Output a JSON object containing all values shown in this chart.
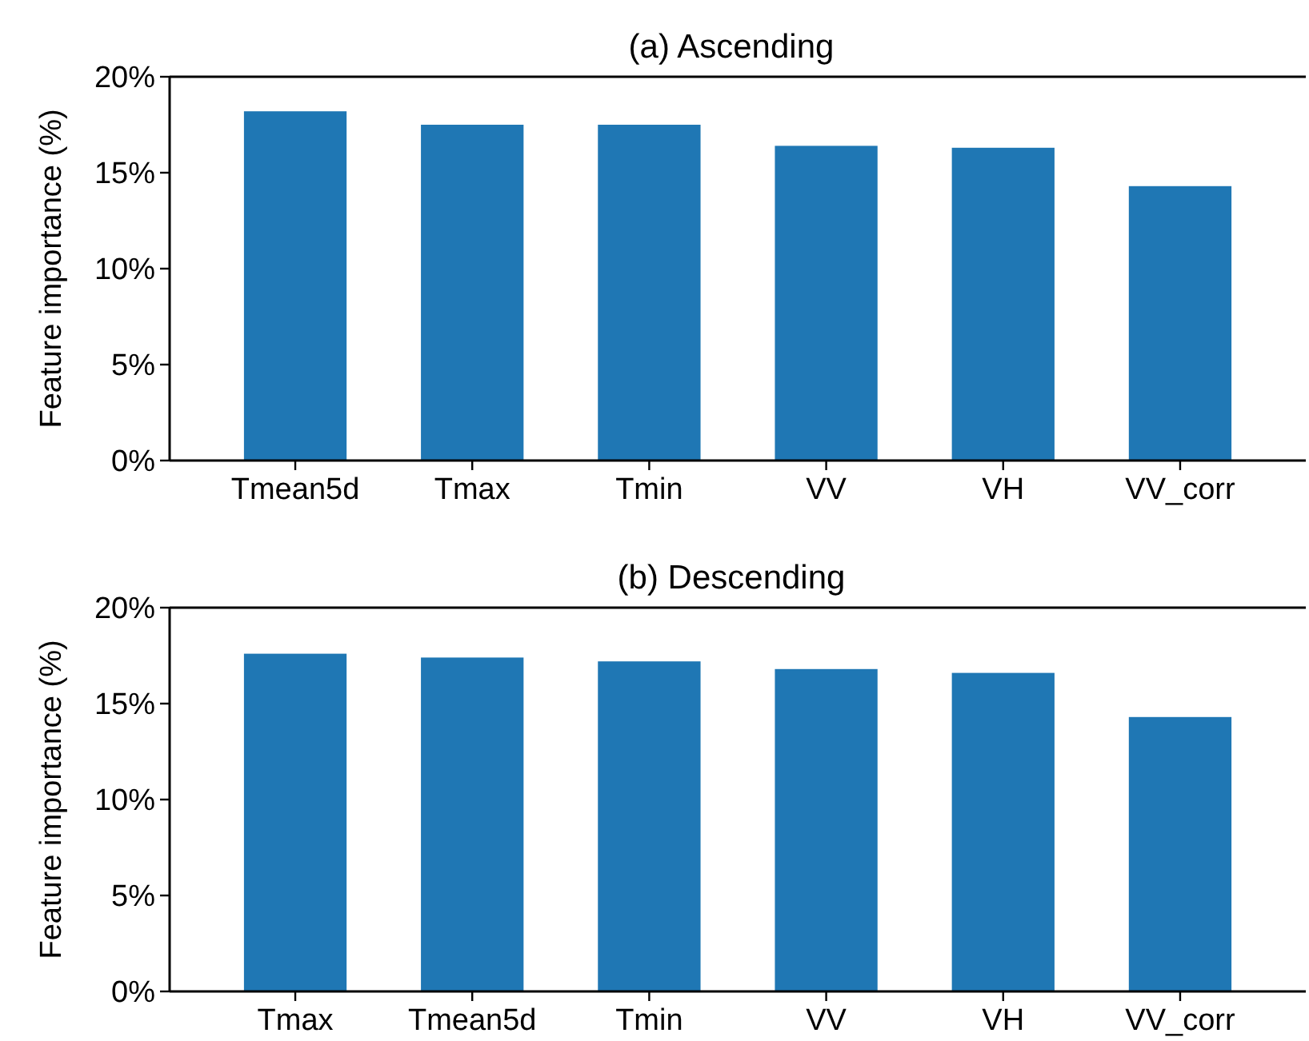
{
  "chart_data": [
    {
      "type": "bar",
      "title": "(a) Ascending",
      "ylabel": "Feature importance (%)",
      "categories": [
        "Tmean5d",
        "Tmax",
        "Tmin",
        "VV",
        "VH",
        "VV_corr"
      ],
      "values": [
        18.2,
        17.5,
        17.5,
        16.4,
        16.3,
        14.3
      ],
      "color": "#1f77b4",
      "ylim": [
        0,
        20
      ],
      "yticks": [
        {
          "value": 0,
          "label": "0%"
        },
        {
          "value": 5,
          "label": "5%"
        },
        {
          "value": 10,
          "label": "10%"
        },
        {
          "value": 15,
          "label": "15%"
        },
        {
          "value": 20,
          "label": "20%"
        }
      ],
      "grid": false
    },
    {
      "type": "bar",
      "title": "(b) Descending",
      "ylabel": "Feature importance (%)",
      "categories": [
        "Tmax",
        "Tmean5d",
        "Tmin",
        "VV",
        "VH",
        "VV_corr"
      ],
      "values": [
        17.6,
        17.4,
        17.2,
        16.8,
        16.6,
        14.3
      ],
      "color": "#1f77b4",
      "ylim": [
        0,
        20
      ],
      "yticks": [
        {
          "value": 0,
          "label": "0%"
        },
        {
          "value": 5,
          "label": "5%"
        },
        {
          "value": 10,
          "label": "10%"
        },
        {
          "value": 15,
          "label": "15%"
        },
        {
          "value": 20,
          "label": "20%"
        }
      ],
      "grid": false
    }
  ]
}
